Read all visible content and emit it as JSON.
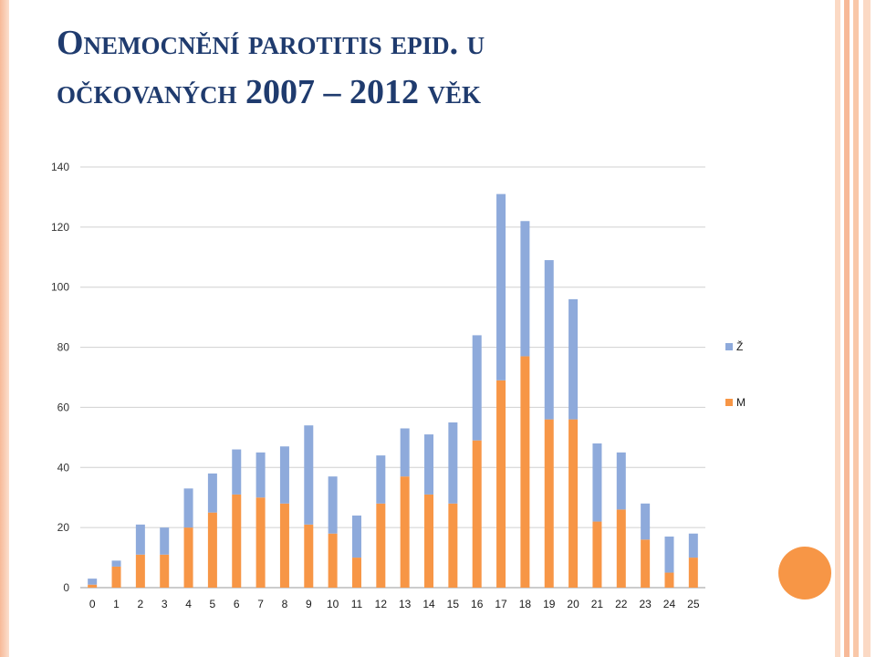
{
  "slide": {
    "title_line1": "Onemocnění parotitis epid. u",
    "title_line2": "očkovaných 2007 – 2012 věk"
  },
  "colors": {
    "series_z": "#8eaadb",
    "series_m": "#f79646",
    "title": "#1f3b6e",
    "gridline": "#d0d0d0",
    "accent_circle": "#f79646"
  },
  "chart_data": {
    "type": "bar",
    "stacked": true,
    "title": "",
    "xlabel": "",
    "ylabel": "",
    "ylim": [
      0,
      140
    ],
    "yticks": [
      0,
      20,
      40,
      60,
      80,
      100,
      120,
      140
    ],
    "grid": true,
    "legend_position": "right",
    "categories": [
      "0",
      "1",
      "2",
      "3",
      "4",
      "5",
      "6",
      "7",
      "8",
      "9",
      "10",
      "11",
      "12",
      "13",
      "14",
      "15",
      "16",
      "17",
      "18",
      "19",
      "20",
      "21",
      "22",
      "23",
      "24",
      "25"
    ],
    "series": [
      {
        "name": "M",
        "values": [
          1,
          7,
          11,
          11,
          20,
          25,
          31,
          30,
          28,
          21,
          18,
          10,
          28,
          37,
          31,
          28,
          49,
          69,
          77,
          56,
          56,
          22,
          26,
          16,
          5,
          10
        ]
      },
      {
        "name": "Ž",
        "values": [
          2,
          2,
          10,
          9,
          13,
          13,
          15,
          15,
          19,
          33,
          19,
          14,
          16,
          16,
          20,
          27,
          35,
          62,
          45,
          53,
          40,
          26,
          19,
          12,
          12,
          8
        ]
      }
    ]
  }
}
